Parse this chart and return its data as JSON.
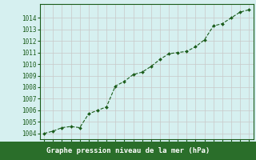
{
  "x": [
    0,
    1,
    2,
    3,
    4,
    5,
    6,
    7,
    8,
    9,
    10,
    11,
    12,
    13,
    14,
    15,
    16,
    17,
    18,
    19,
    20,
    21,
    22,
    23
  ],
  "y": [
    1004.0,
    1004.2,
    1004.5,
    1004.6,
    1004.5,
    1005.7,
    1006.0,
    1006.3,
    1008.1,
    1008.5,
    1009.1,
    1009.3,
    1009.8,
    1010.4,
    1010.9,
    1011.0,
    1011.1,
    1011.5,
    1012.1,
    1013.3,
    1013.5,
    1014.0,
    1014.5,
    1014.7
  ],
  "bg_color": "#d6f0f0",
  "grid_color": "#c8c8c8",
  "line_color": "#1a5c1a",
  "marker_color": "#1a5c1a",
  "xlabel": "Graphe pression niveau de la mer (hPa)",
  "tick_color": "#1a5c1a",
  "ylabel_ticks": [
    1004,
    1005,
    1006,
    1007,
    1008,
    1009,
    1010,
    1011,
    1012,
    1013,
    1014
  ],
  "ylim": [
    1003.5,
    1015.2
  ],
  "xlim": [
    -0.5,
    23.5
  ],
  "border_color": "#1a5c1a",
  "bottom_bar_color": "#2a6e2a",
  "bottom_bar_text_color": "#ffffff",
  "tick_fontsize": 5.5,
  "xlabel_fontsize": 6.5
}
